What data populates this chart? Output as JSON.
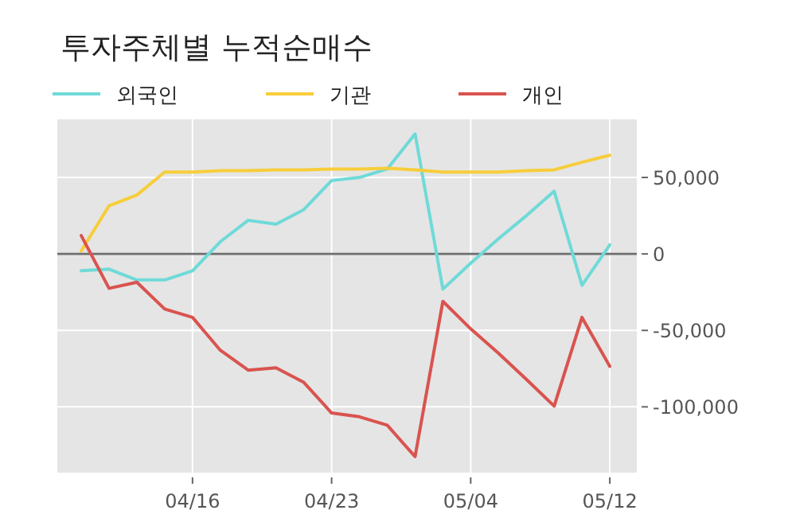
{
  "chart_data": {
    "type": "line",
    "title": "투자주체별 누적순매수",
    "categories": [
      null,
      null,
      null,
      null,
      "04/16",
      null,
      null,
      null,
      null,
      "04/23",
      null,
      null,
      null,
      null,
      "05/04",
      null,
      null,
      null,
      null,
      "05/12"
    ],
    "series": [
      {
        "name": "외국인",
        "color": "#6fdad8",
        "values": [
          -11000,
          -10000,
          -17000,
          -17000,
          -11000,
          8000,
          22000,
          19500,
          29000,
          48000,
          50000,
          55500,
          78500,
          -23000,
          -6000,
          10000,
          25000,
          41000,
          -20500,
          6000
        ]
      },
      {
        "name": "기관",
        "color": "#f7cd3a",
        "values": [
          2000,
          31500,
          38500,
          53500,
          53500,
          54500,
          54500,
          55000,
          55000,
          55500,
          55500,
          56000,
          55000,
          53500,
          53500,
          53500,
          54500,
          55000,
          60000,
          64500
        ]
      },
      {
        "name": "개인",
        "color": "#d9534f",
        "values": [
          12000,
          -22500,
          -18500,
          -36000,
          -41500,
          -63000,
          -76000,
          -74500,
          -84000,
          -104000,
          -106500,
          -112000,
          -132500,
          -31000,
          -49000,
          -65000,
          -82000,
          -99500,
          -41500,
          -73500
        ]
      }
    ],
    "ylim": [
      -143000,
      88000
    ],
    "yticks": [
      {
        "value": 50000,
        "label": "50,000"
      },
      0,
      {
        "value": -50000,
        "label": "-50,000"
      },
      {
        "value": -100000,
        "label": "-100,000"
      }
    ],
    "ref_lines": [
      {
        "axis": "y",
        "value": 0,
        "color": "#6e6e6e"
      }
    ],
    "grid": true,
    "legend": "top left",
    "marker": "none",
    "line_style": "solid"
  }
}
